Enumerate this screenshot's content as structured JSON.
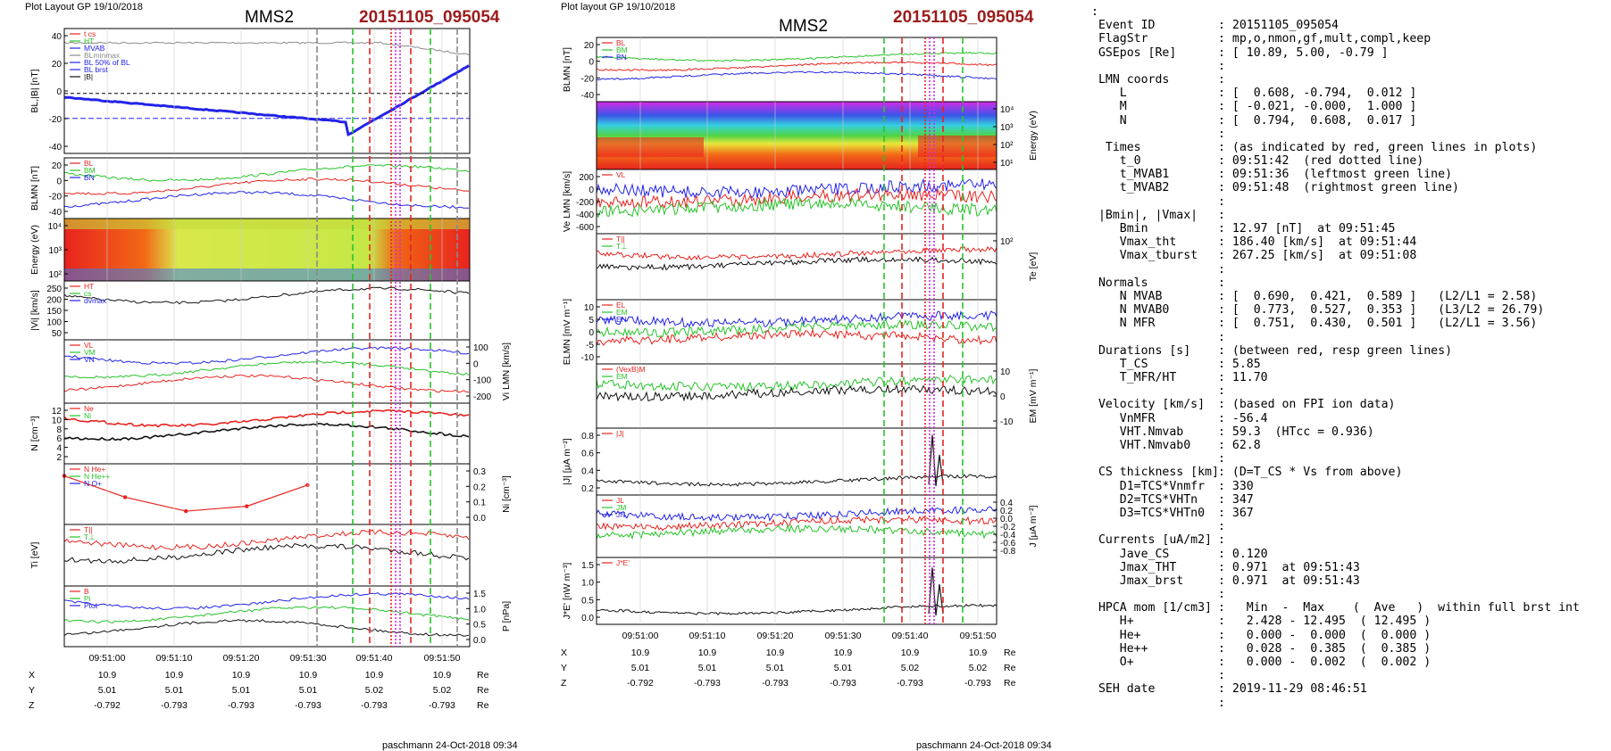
{
  "left": {
    "header": "Plot Layout GP 19/10/2018",
    "title": "MMS2",
    "event": "20151105_095054",
    "footer": "paschmann 24-Oct-2018 09:34",
    "time_ticks": [
      "09:51:00",
      "09:51:10",
      "09:51:20",
      "09:51:30",
      "09:51:40",
      "09:51:50"
    ],
    "coords": {
      "X": [
        "10.9",
        "10.9",
        "10.9",
        "10.9",
        "10.9",
        "10.9"
      ],
      "Y": [
        "5.01",
        "5.01",
        "5.01",
        "5.01",
        "5.02",
        "5.02"
      ],
      "Z": [
        "-0.792",
        "-0.793",
        "-0.793",
        "-0.793",
        "-0.793",
        "-0.793"
      ],
      "unit": "Re"
    },
    "panels": [
      {
        "ylabel": "BL,|B| [nT]",
        "yticks": [
          "40",
          "20",
          "0",
          "-20",
          "-40"
        ],
        "legend": [
          "t cs",
          "HT",
          "MVAB",
          "BLminmax",
          "BL 50% of BL",
          "BL brst",
          "|B|"
        ]
      },
      {
        "ylabel": "BLMN [nT]",
        "yticks": [
          "20",
          "0",
          "-20",
          "-40"
        ],
        "legend": [
          "BL",
          "BM",
          "BN"
        ]
      },
      {
        "ylabel": "Energy (eV)",
        "yticks": [
          "10⁴",
          "10³",
          "10²"
        ],
        "legend": []
      },
      {
        "ylabel": "|Vi| [km/s]",
        "yticks": [
          "250",
          "200",
          "150",
          "100",
          "50"
        ],
        "legend": [
          "HT",
          "cs",
          "dvmax"
        ]
      },
      {
        "ylabel": "Vi LMN [km/s]",
        "yticks": [
          "100",
          "0",
          "-100",
          "-200"
        ],
        "legend": [
          "VL",
          "VM",
          "VN"
        ]
      },
      {
        "ylabel": "N [cm⁻³]",
        "yticks": [
          "12",
          "10",
          "8",
          "6",
          "4",
          "2"
        ],
        "legend": [
          "Ne",
          "Ni"
        ]
      },
      {
        "ylabel": "Ni [cm⁻³]",
        "yticks": [
          "0.3",
          "0.2",
          "0.1",
          "0.0"
        ],
        "legend": [
          "N He+",
          "N He++",
          "N O+"
        ]
      },
      {
        "ylabel": "Ti [eV]",
        "yticks": [],
        "legend": [
          "T||",
          "T⊥"
        ]
      },
      {
        "ylabel": "P [nPa]",
        "yticks": [
          "1.5",
          "1.0",
          "0.5",
          "0.0"
        ],
        "legend": [
          "B",
          "Pi",
          "Ptot"
        ]
      }
    ]
  },
  "middle": {
    "header": "Plot layout GP 19/10/2018",
    "title": "MMS2",
    "event": "20151105_095054",
    "footer": "paschmann 24-Oct-2018 09:34",
    "time_ticks": [
      "09:51:00",
      "09:51:10",
      "09:51:20",
      "09:51:30",
      "09:51:40",
      "09:51:50"
    ],
    "coords": {
      "X": [
        "10.9",
        "10.9",
        "10.9",
        "10.9",
        "10.9",
        "10.9"
      ],
      "Y": [
        "5.01",
        "5.01",
        "5.01",
        "5.01",
        "5.02",
        "5.02"
      ],
      "Z": [
        "-0.792",
        "-0.793",
        "-0.793",
        "-0.793",
        "-0.793",
        "-0.793"
      ],
      "unit": "Re"
    },
    "panels": [
      {
        "ylabel": "BLMN [nT]",
        "yticks": [
          "20",
          "0",
          "-20",
          "-40"
        ],
        "legend": [
          "BL",
          "BM",
          "BN"
        ]
      },
      {
        "ylabel": "Energy (eV)",
        "yticks": [
          "10⁴",
          "10³",
          "10²",
          "10¹"
        ],
        "legend": []
      },
      {
        "ylabel": "Ve LMN [km/s]",
        "yticks": [
          "200",
          "0",
          "-200",
          "-400",
          "-600"
        ],
        "legend": [
          "VL"
        ]
      },
      {
        "ylabel": "Te [eV]",
        "yticks": [
          "10²"
        ],
        "legend": [
          "T||",
          "T⊥"
        ]
      },
      {
        "ylabel": "ELMN [mV m⁻¹]",
        "yticks": [
          "10",
          "5",
          "0",
          "-5",
          "-10"
        ],
        "legend": [
          "EL",
          "EM",
          "EN"
        ]
      },
      {
        "ylabel": "EM [mV m⁻¹]",
        "yticks": [
          "10",
          "0",
          "-10"
        ],
        "legend": [
          "(VexB)M",
          "EM"
        ]
      },
      {
        "ylabel": "|J| [μA m⁻²]",
        "yticks": [
          "0.8",
          "0.6",
          "0.4",
          "0.2"
        ],
        "legend": [
          "|J|"
        ]
      },
      {
        "ylabel": "J [μA m⁻²]",
        "yticks": [
          "0.4",
          "0.2",
          "0.0",
          "-0.2",
          "-0.4",
          "-0.6",
          "-0.8"
        ],
        "legend": [
          "JL",
          "JM",
          "JN"
        ]
      },
      {
        "ylabel": "J*E' [nW m⁻³]",
        "yticks": [
          "1.5",
          "1.0",
          "0.5",
          "0.0"
        ],
        "legend": [
          "J*E'"
        ]
      }
    ]
  },
  "info": {
    "top_mark": ":",
    "rows": [
      [
        "Event ID",
        ": 20151105_095054"
      ],
      [
        "FlagStr",
        ": mp,o,nmon,gf,mult,compl,keep"
      ],
      [
        "GSEpos [Re]",
        ": [ 10.89, 5.00, -0.79 ]"
      ],
      [
        "",
        ":"
      ],
      [
        "LMN coords",
        ":"
      ],
      [
        "   L",
        ": [  0.608, -0.794,  0.012 ]"
      ],
      [
        "   M",
        ": [ -0.021, -0.000,  1.000 ]"
      ],
      [
        "   N",
        ": [  0.794,  0.608,  0.017 ]"
      ],
      [
        "",
        ":"
      ],
      [
        " Times",
        ": (as indicated by red, green lines in plots)"
      ],
      [
        "   t_0",
        ": 09:51:42  (red dotted line)"
      ],
      [
        "   t_MVAB1",
        ": 09:51:36  (leftmost green line)"
      ],
      [
        "   t_MVAB2",
        ": 09:51:48  (rightmost green line)"
      ],
      [
        "",
        ":"
      ],
      [
        "|Bmin|, |Vmax|",
        ":"
      ],
      [
        "   Bmin",
        ": 12.97 [nT]  at 09:51:45"
      ],
      [
        "   Vmax_tht",
        ": 186.40 [km/s]  at 09:51:44"
      ],
      [
        "   Vmax_tburst",
        ": 267.25 [km/s]  at 09:51:08"
      ],
      [
        "",
        ":"
      ],
      [
        "Normals",
        ":"
      ],
      [
        "   N MVAB",
        ": [  0.690,  0.421,  0.589 ]   (L2/L1 = 2.58)"
      ],
      [
        "   N MVAB0",
        ": [  0.773,  0.527,  0.353 ]   (L3/L2 = 26.79)"
      ],
      [
        "   N MFR",
        ": [  0.751,  0.430,  0.501 ]   (L2/L1 = 3.56)"
      ],
      [
        "",
        ":"
      ],
      [
        "Durations [s]",
        ": (between red, resp green lines)"
      ],
      [
        "   T_CS",
        ": 5.85"
      ],
      [
        "   T_MFR/HT",
        ": 11.70"
      ],
      [
        "",
        ":"
      ],
      [
        "Velocity [km/s]",
        ": (based on FPI ion data)"
      ],
      [
        "   VnMFR",
        ": -56.4"
      ],
      [
        "   VHT.Nmvab",
        ": 59.3  (HTcc = 0.936)"
      ],
      [
        "   VHT.Nmvab0",
        ": 62.8"
      ],
      [
        "",
        ":"
      ],
      [
        "CS thickness [km]",
        ": (D=T_CS * Vs from above)"
      ],
      [
        "   D1=TCS*Vnmfr",
        ": 330"
      ],
      [
        "   D2=TCS*VHTn",
        ": 347"
      ],
      [
        "   D3=TCS*VHTn0",
        ": 367"
      ],
      [
        "",
        ":"
      ],
      [
        "Currents [uA/m2]",
        ":"
      ],
      [
        "   Jave_CS",
        ": 0.120"
      ],
      [
        "   Jmax_THT",
        ": 0.971  at 09:51:43"
      ],
      [
        "   Jmax_brst",
        ": 0.971  at 09:51:43"
      ],
      [
        "",
        ":"
      ],
      [
        "HPCA mom [1/cm3]",
        ":   Min  -  Max    (  Ave   )  within full brst int"
      ],
      [
        "   H+",
        ":   2.428 - 12.495  ( 12.495 )"
      ],
      [
        "   He+",
        ":   0.000 -  0.000  (  0.000 )"
      ],
      [
        "   He++",
        ":   0.028 -  0.385  (  0.385 )"
      ],
      [
        "   O+",
        ":   0.000 -  0.002  (  0.002 )"
      ],
      [
        "",
        ":"
      ],
      [
        "SEH date",
        ": 2019-11-29 08:46:51"
      ],
      [
        "",
        ":"
      ]
    ]
  },
  "colors": {
    "red": "#e8231f",
    "green": "#27c32a",
    "blue": "#2323e8",
    "black": "#111111",
    "magenta": "#d02be0",
    "gray": "#8a8a8a",
    "event": "#9b1b1b"
  },
  "chart_data": [
    {
      "type": "line",
      "title": "MMS2",
      "series": [
        {
          "name": "|B|",
          "values": []
        },
        {
          "name": "BL",
          "values": []
        }
      ],
      "xlabel": "",
      "ylabel": "BL,|B| [nT]",
      "ylim": [
        -50,
        50
      ]
    },
    {
      "type": "line",
      "title": "MMS2",
      "series": [
        {
          "name": "BL",
          "values": []
        },
        {
          "name": "BM",
          "values": []
        },
        {
          "name": "BN",
          "values": []
        }
      ],
      "xlabel": "",
      "ylabel": "BLMN [nT]",
      "ylim": [
        -50,
        30
      ]
    }
  ]
}
